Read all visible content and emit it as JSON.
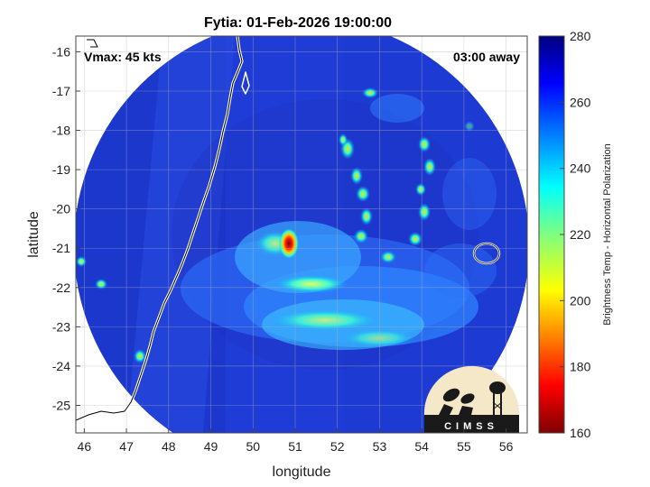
{
  "title": "Fytia: 01-Feb-2026 19:00:00",
  "vmax_label": "Vmax: 45 kts",
  "time_away_label": "03:00 away",
  "map": {
    "xlabel": "longitude",
    "ylabel": "latitude",
    "lon_ticks": [
      "46",
      "47",
      "48",
      "49",
      "50",
      "51",
      "52",
      "53",
      "54",
      "55",
      "56"
    ],
    "lat_ticks": [
      "-16",
      "-17",
      "-18",
      "-19",
      "-20",
      "-21",
      "-22",
      "-23",
      "-24",
      "-25"
    ],
    "lon_range": [
      45.8,
      56.5
    ],
    "lat_range": [
      -25.7,
      -15.6
    ],
    "grid": true
  },
  "colorbar": {
    "label": "Brightness Temp - Horizontal Polarization",
    "ticks": [
      "280",
      "260",
      "240",
      "220",
      "200",
      "180",
      "160"
    ],
    "range": [
      160,
      280
    ],
    "colormap": "jet"
  },
  "logo_text": "CIMSS",
  "colors": {
    "background_swath": "#1e3ad0",
    "coast": "#ffffff",
    "storm_core": "#d40000"
  }
}
